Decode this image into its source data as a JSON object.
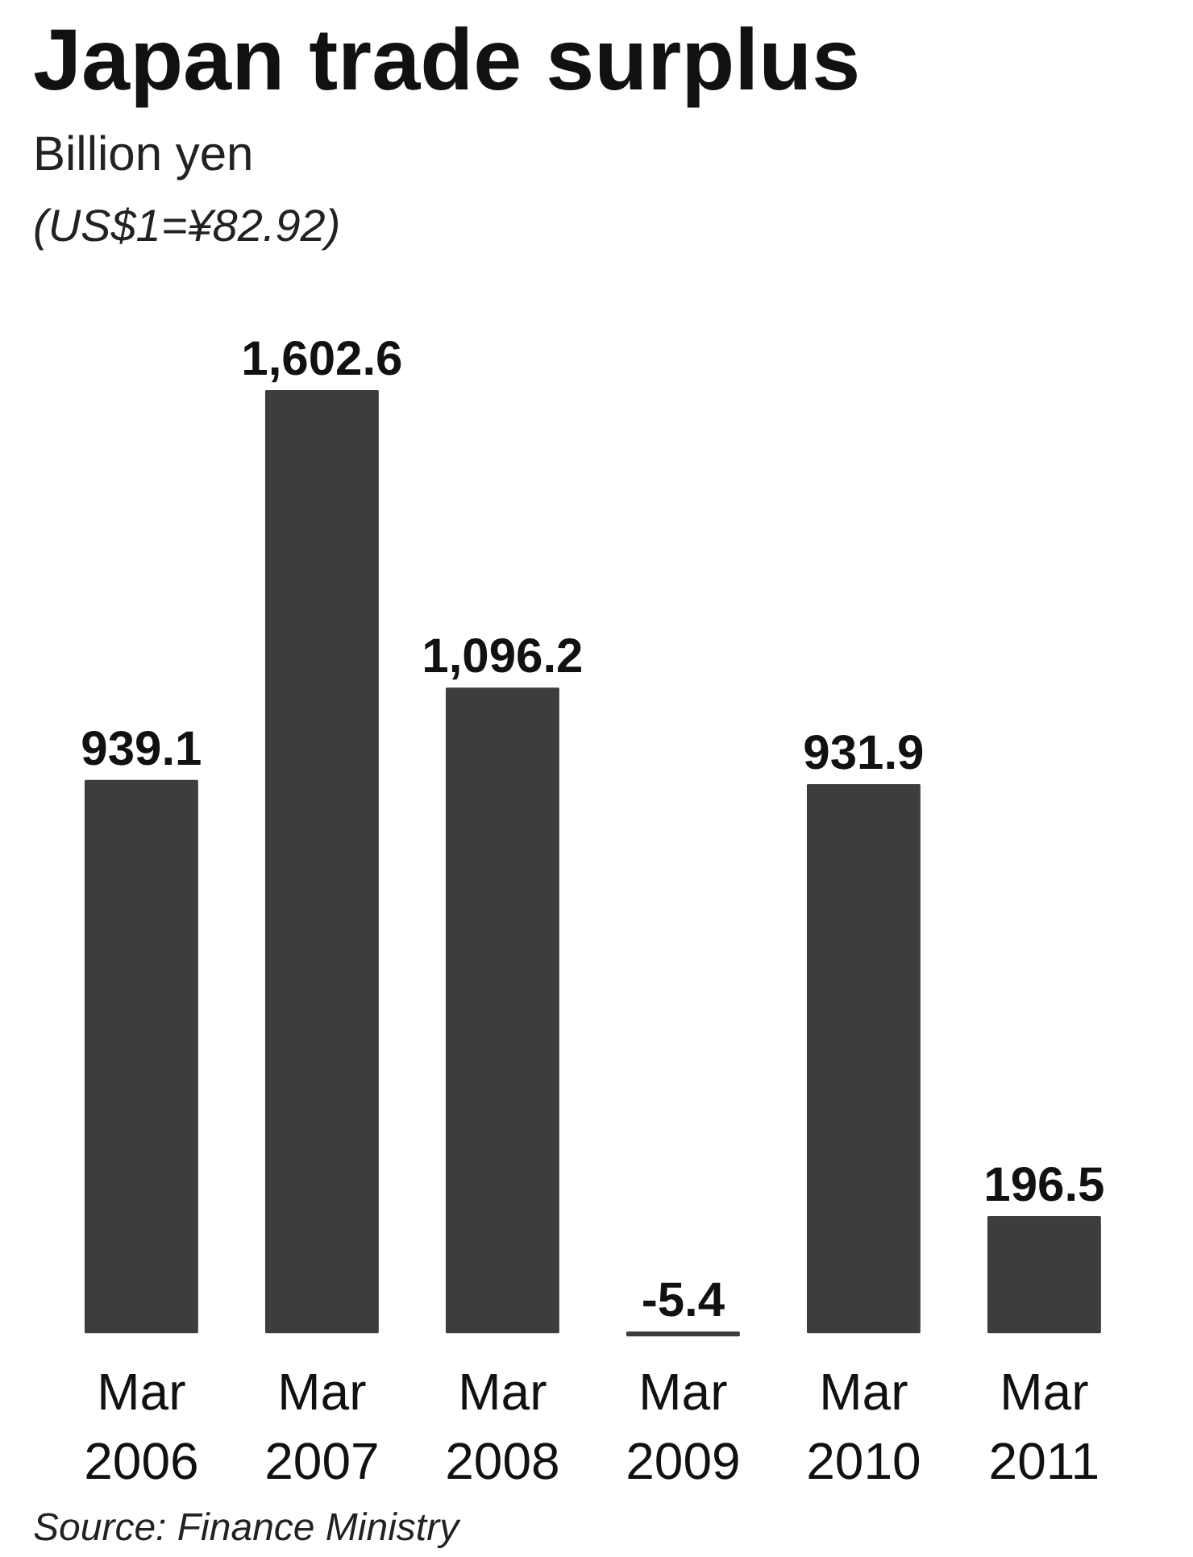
{
  "chart_data": {
    "type": "bar",
    "title": "Japan trade surplus",
    "subtitle": "Billion yen",
    "annotations": [
      "(US$1=¥82.92)",
      "Source: Finance Ministry"
    ],
    "categories": [
      "Mar 2006",
      "Mar 2007",
      "Mar 2008",
      "Mar 2009",
      "Mar 2010",
      "Mar 2011"
    ],
    "values": [
      939.1,
      1602.6,
      1096.2,
      -5.4,
      931.9,
      196.5
    ],
    "value_labels": [
      "939.1",
      "1,602.6",
      "1,096.2",
      "-5.4",
      "931.9",
      "196.5"
    ],
    "color": "#3d3d3d",
    "grid": false
  }
}
